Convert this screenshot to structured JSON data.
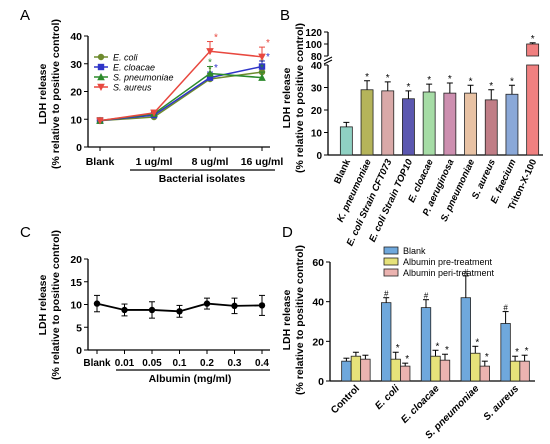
{
  "chart_data": [
    {
      "panel": "A",
      "type": "line",
      "ylabel": [
        "LDH release",
        "(% relative to positive control)"
      ],
      "ylim": [
        0,
        40
      ],
      "yticks": [
        0,
        10,
        20,
        30,
        40
      ],
      "categories": [
        "Blank",
        "1 ug/ml",
        "8 ug/ml",
        "16 ug/ml"
      ],
      "xlabel": "Bacterial isolates",
      "group_underline_from": 1,
      "series": [
        {
          "name": "E. coli",
          "color": "#6e8b2e",
          "marker": "circle",
          "values": [
            9.5,
            10.8,
            24.5,
            27.0
          ],
          "errors": [
            1.0,
            0.8,
            2.0,
            2.0
          ],
          "stars": [
            false,
            false,
            true,
            true
          ]
        },
        {
          "name": "E. cloacae",
          "color": "#2f35c8",
          "marker": "square",
          "values": [
            9.5,
            11.5,
            25.0,
            29.0
          ],
          "errors": [
            1.0,
            0.8,
            2.0,
            2.0
          ],
          "stars": [
            false,
            false,
            true,
            true
          ]
        },
        {
          "name": "S. pneumoniae",
          "color": "#2c8a2c",
          "marker": "triangle",
          "values": [
            9.5,
            12.0,
            26.5,
            25.0
          ],
          "errors": [
            1.0,
            0.8,
            2.5,
            2.0
          ],
          "stars": [
            false,
            false,
            true,
            true
          ]
        },
        {
          "name": "S. aureus",
          "color": "#e8483f",
          "marker": "triangle-down",
          "values": [
            9.5,
            12.3,
            34.5,
            32.5
          ],
          "errors": [
            1.0,
            1.0,
            3.5,
            3.5
          ],
          "stars": [
            false,
            false,
            true,
            true
          ]
        }
      ]
    },
    {
      "panel": "B",
      "type": "bar",
      "ylabel": [
        "LDH release",
        "(% relative to positive control)"
      ],
      "yticks_lower": [
        0,
        10,
        20,
        30,
        40
      ],
      "yticks_upper": [
        80,
        100,
        120
      ],
      "ylim": [
        0,
        120
      ],
      "axis_break": [
        40,
        80
      ],
      "categories": [
        "Blank",
        "K. pneumoniae",
        "E. coli Strain CFT073",
        "E. coli Strain TOP10",
        "E. cloacae",
        "P. aeruginosa",
        "S. pneumoniae",
        "S. aureus",
        "E. faecium",
        "Triton-X-100"
      ],
      "values": [
        12.5,
        29.0,
        28.5,
        25.0,
        28.0,
        27.5,
        27.5,
        24.5,
        27.0,
        100
      ],
      "errors": [
        2.0,
        4.0,
        4.0,
        3.5,
        3.5,
        4.5,
        3.5,
        4.5,
        4.0,
        2.0
      ],
      "stars": [
        false,
        true,
        true,
        true,
        true,
        true,
        true,
        true,
        true,
        true
      ],
      "colors": [
        "#8fd1c3",
        "#b5b45a",
        "#d9a9a8",
        "#5b57b0",
        "#a6dca6",
        "#cd8fb0",
        "#e8c2a4",
        "#c07d86",
        "#8aa8d8",
        "#f08080"
      ]
    },
    {
      "panel": "C",
      "type": "line",
      "ylabel": [
        "LDH release",
        "(% relative to positive control)"
      ],
      "ylim": [
        0,
        20
      ],
      "yticks": [
        0,
        5,
        10,
        15,
        20
      ],
      "categories": [
        "Blank",
        "0.01",
        "0.05",
        "0.1",
        "0.2",
        "0.3",
        "0.4"
      ],
      "xlabel": "Albumin (mg/ml)",
      "group_underline_from": 1,
      "series": [
        {
          "name": "",
          "color": "#000000",
          "marker": "circle",
          "values": [
            10.2,
            8.8,
            8.8,
            8.5,
            10.2,
            9.7,
            9.8
          ],
          "errors": [
            1.8,
            1.3,
            1.8,
            1.3,
            1.2,
            1.7,
            2.2
          ]
        }
      ]
    },
    {
      "panel": "D",
      "type": "bar",
      "ylabel": [
        "LDH release",
        "(% relative to positive control)"
      ],
      "ylim": [
        0,
        60
      ],
      "yticks": [
        0,
        20,
        40,
        60
      ],
      "categories": [
        "Control",
        "E. coli",
        "E. cloacae",
        "S. pneumoniae",
        "S. aureus"
      ],
      "series": [
        {
          "name": "Blank",
          "color": "#6fa8dc",
          "values": [
            10.0,
            39.5,
            37.0,
            42.0,
            29.0
          ],
          "errors": [
            1.5,
            2.5,
            4.0,
            11.0,
            6.0
          ],
          "marks": [
            "",
            "#",
            "#",
            "#",
            "#"
          ]
        },
        {
          "name": "Albumin pre-treatment",
          "color": "#e6e27a",
          "values": [
            12.5,
            11.0,
            12.5,
            14.0,
            10.0
          ],
          "errors": [
            2.0,
            3.5,
            3.0,
            3.5,
            2.5
          ],
          "marks": [
            "",
            "*",
            "*",
            "*",
            "*"
          ]
        },
        {
          "name": "Albumin peri-treatment",
          "color": "#ebb3b0",
          "values": [
            11.0,
            7.5,
            10.5,
            7.5,
            10.0
          ],
          "errors": [
            2.0,
            1.5,
            3.0,
            2.5,
            3.0
          ],
          "marks": [
            "",
            "*",
            "*",
            "*",
            "*"
          ]
        }
      ]
    }
  ],
  "panel_labels": [
    "A",
    "B",
    "C",
    "D"
  ]
}
